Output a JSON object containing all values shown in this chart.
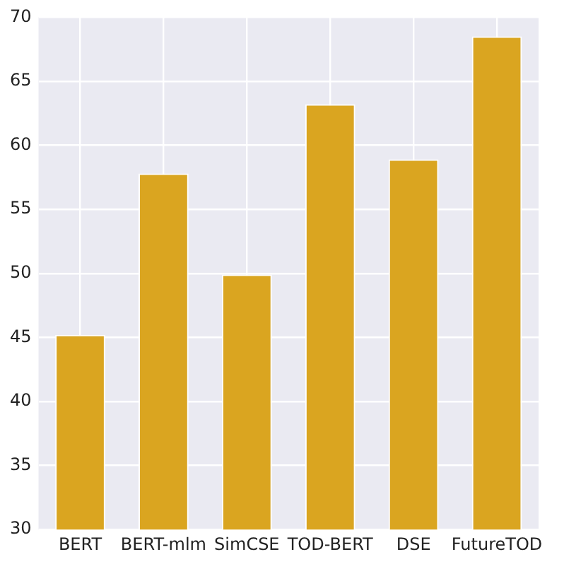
{
  "chart_data": {
    "type": "bar",
    "categories": [
      "BERT",
      "BERT-mlm",
      "SimCSE",
      "TOD-BERT",
      "DSE",
      "FutureTOD"
    ],
    "values": [
      45.2,
      57.8,
      49.9,
      63.2,
      58.9,
      68.5
    ],
    "color": "#daa520",
    "ylim": [
      30,
      70
    ],
    "yticks": [
      30,
      35,
      40,
      45,
      50,
      55,
      60,
      65,
      70
    ],
    "grid": true
  }
}
